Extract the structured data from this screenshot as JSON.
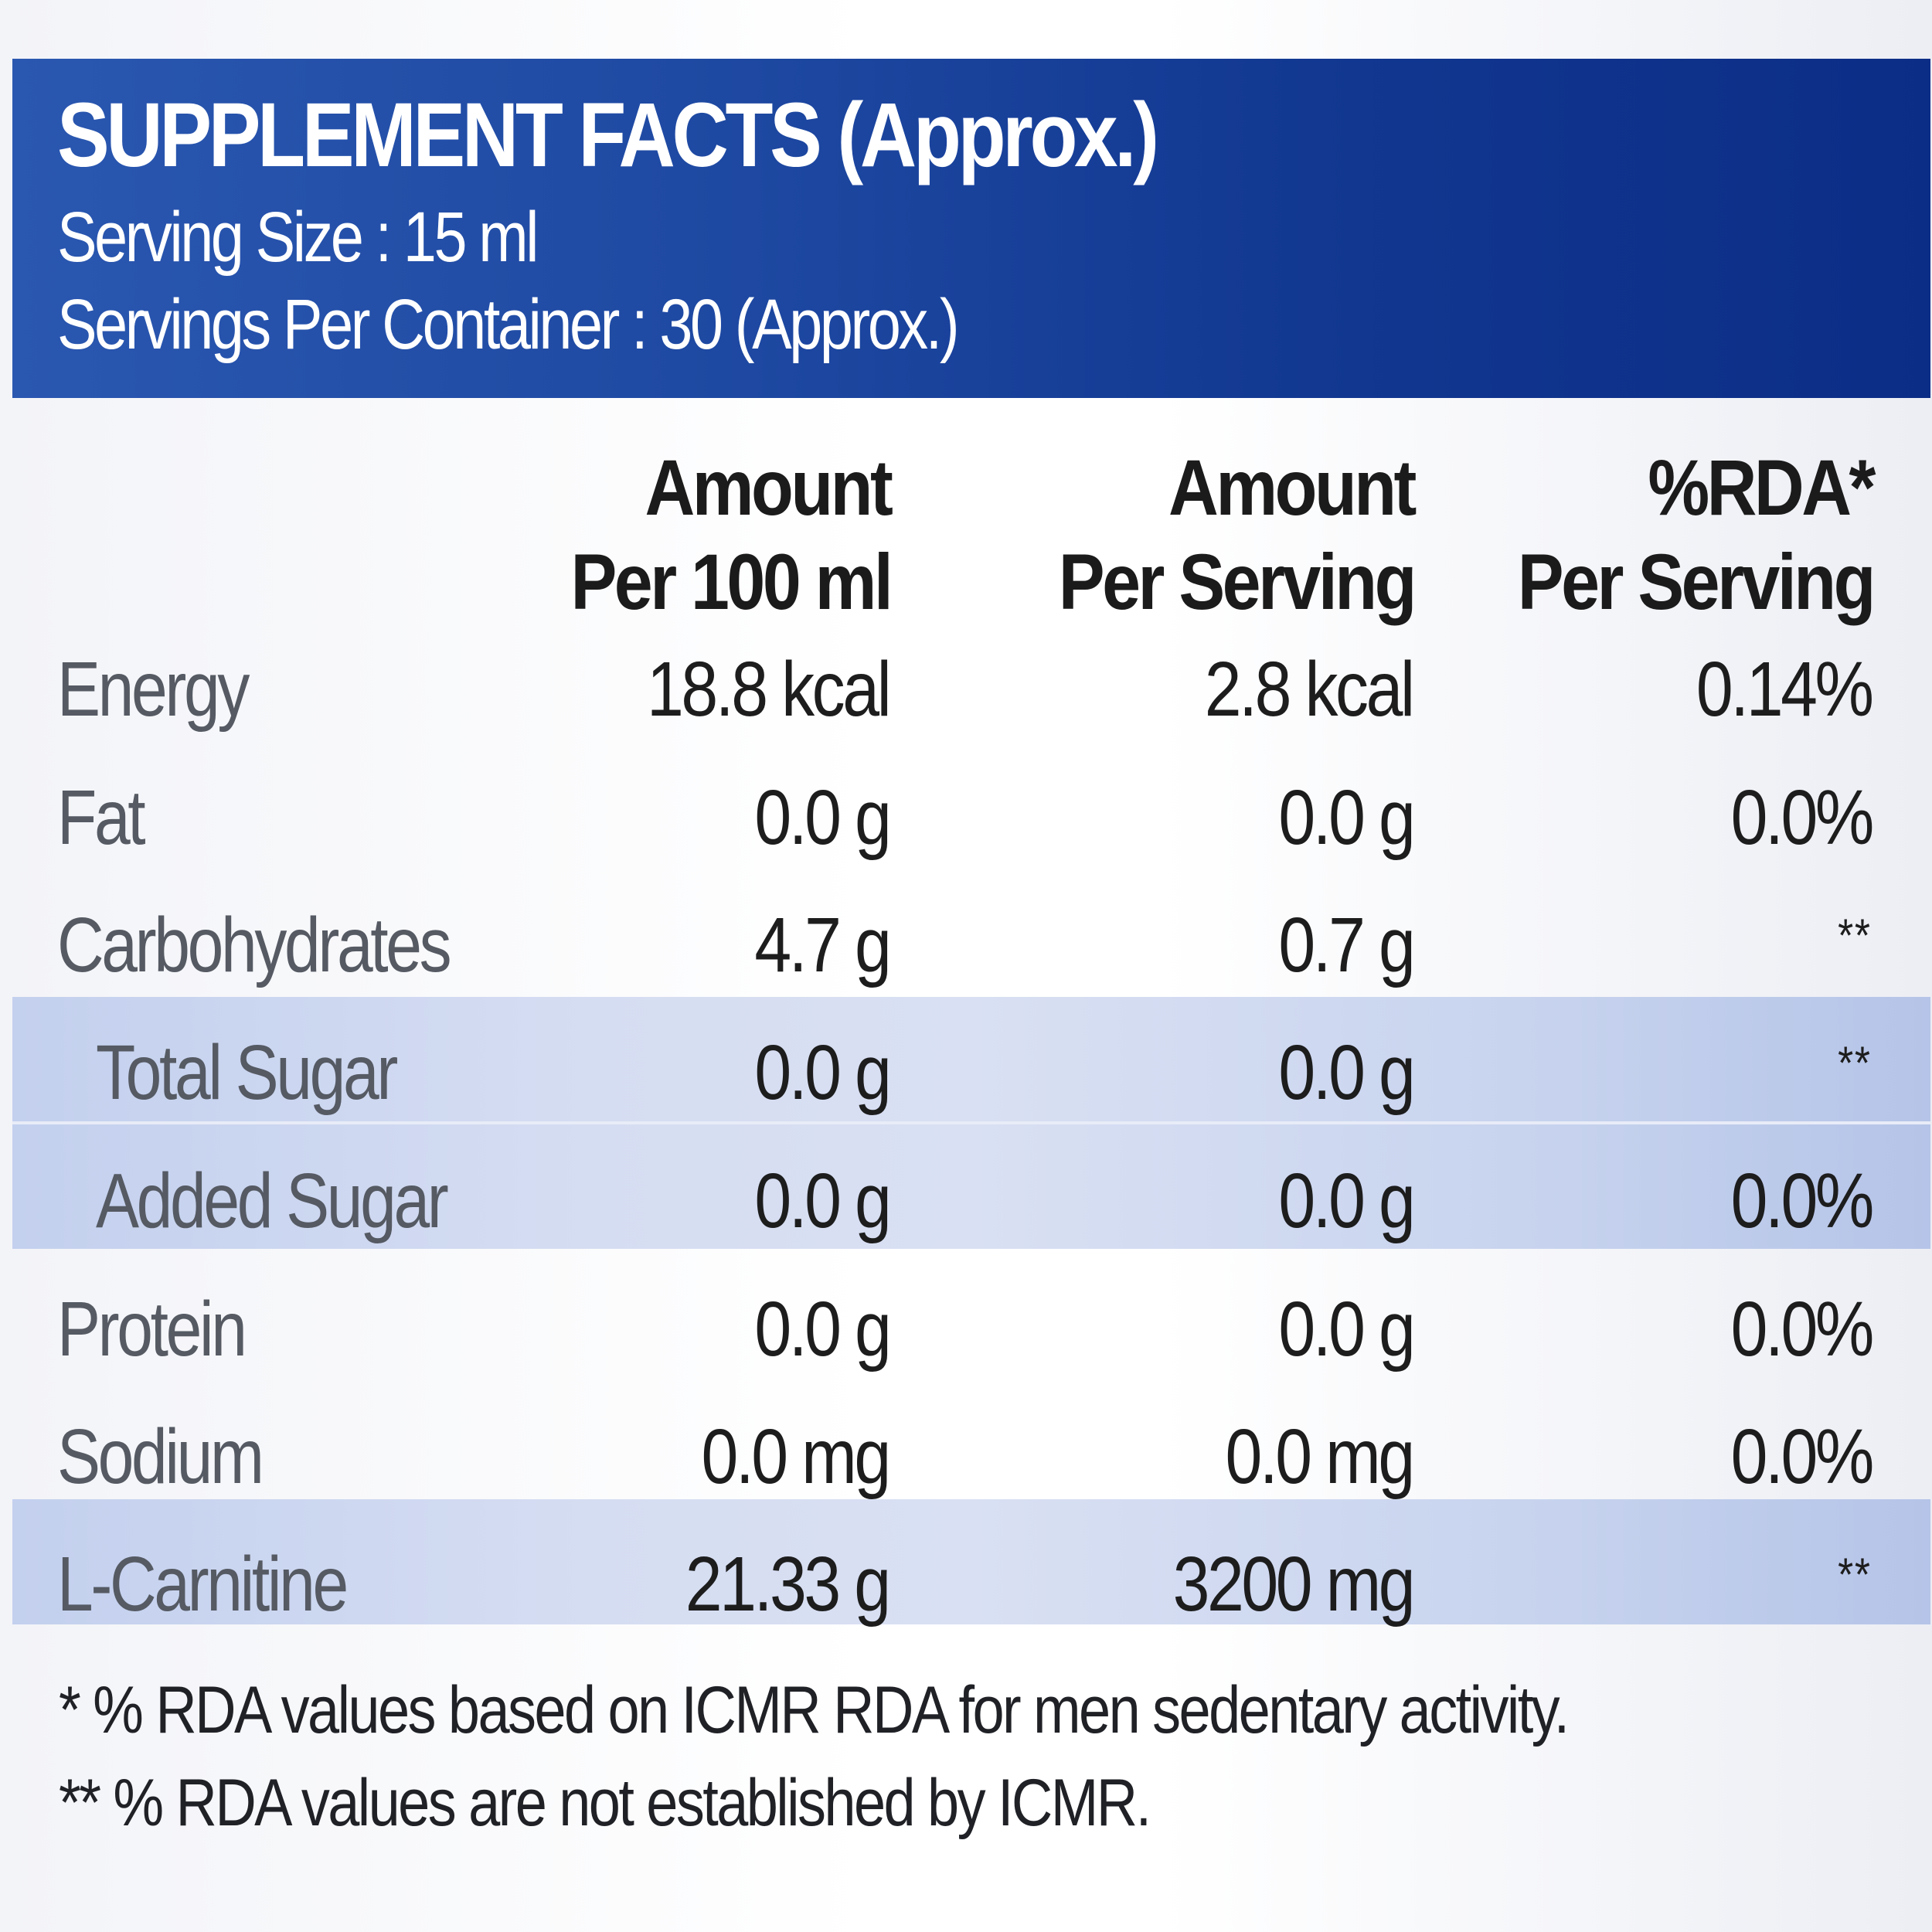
{
  "header": {
    "title": "SUPPLEMENT FACTS (Approx.)",
    "serving_size": "Serving Size : 15 ml",
    "servings_per_container": "Servings Per Container : 30 (Approx.)"
  },
  "columns": [
    {
      "line1": "Amount",
      "line2": "Per 100 ml"
    },
    {
      "line1": "Amount",
      "line2": "Per Serving"
    },
    {
      "line1": "%RDA*",
      "line2": "Per Serving"
    }
  ],
  "rows": [
    {
      "name": "Energy",
      "per100": "18.8 kcal",
      "perServing": "2.8 kcal",
      "rda": "0.14%"
    },
    {
      "name": "Fat",
      "per100": "0.0 g",
      "perServing": "0.0 g",
      "rda": "0.0%"
    },
    {
      "name": "Carbohydrates",
      "per100": "4.7 g",
      "perServing": "0.7 g",
      "rda": "**"
    },
    {
      "name": "Total Sugar",
      "per100": "0.0 g",
      "perServing": "0.0 g",
      "rda": "**"
    },
    {
      "name": "Added Sugar",
      "per100": "0.0 g",
      "perServing": "0.0 g",
      "rda": "0.0%"
    },
    {
      "name": "Protein",
      "per100": "0.0 g",
      "perServing": "0.0 g",
      "rda": "0.0%"
    },
    {
      "name": "Sodium",
      "per100": "0.0 mg",
      "perServing": "0.0 mg",
      "rda": "0.0%"
    },
    {
      "name": "L-Carnitine",
      "per100": "21.33 g",
      "perServing": "3200 mg",
      "rda": "**"
    }
  ],
  "footnotes": [
    "* % RDA values based on ICMR RDA for men sedentary activity.",
    "** % RDA values are not established by ICMR."
  ],
  "colors": {
    "header_blue": "#1a44a0",
    "highlight_band": "#d3dbf1",
    "text_dark": "#1d1d1d",
    "text_label": "#555a63"
  }
}
